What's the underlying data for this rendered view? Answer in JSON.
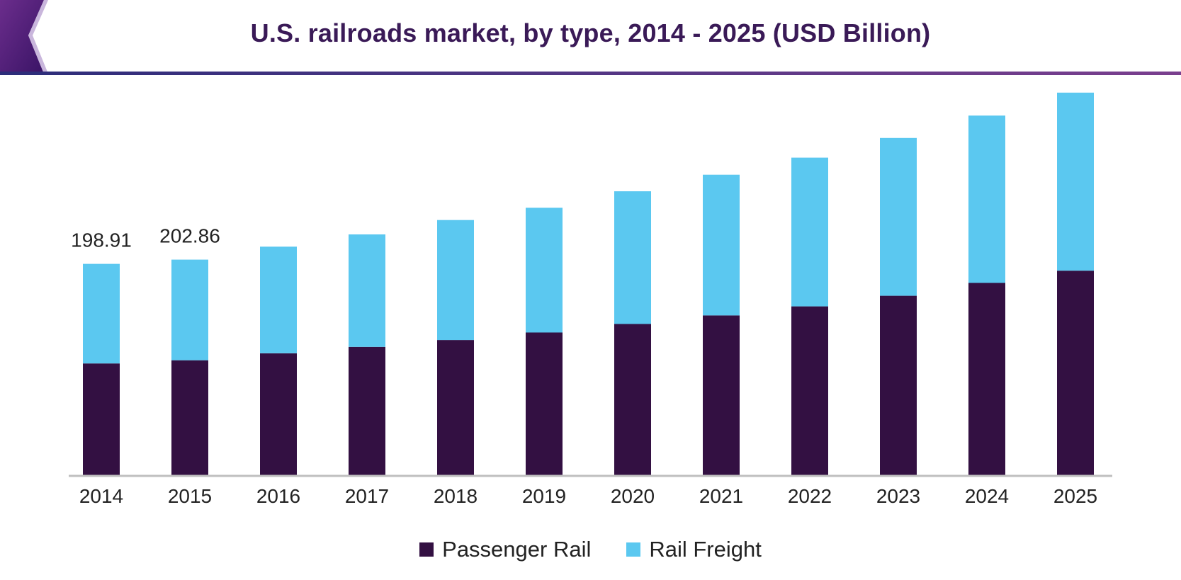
{
  "colors": {
    "passenger": "#331042",
    "freight": "#5bc8f0",
    "title": "#3a1a57",
    "accent": "#4a2470"
  },
  "chart_data": {
    "type": "bar",
    "stacked": true,
    "title": "U.S. railroads market, by type, 2014 - 2025 (USD Billion)",
    "xlabel": "",
    "ylabel": "",
    "ylim": [
      0,
      370
    ],
    "categories": [
      "2014",
      "2015",
      "2016",
      "2017",
      "2018",
      "2019",
      "2020",
      "2021",
      "2022",
      "2023",
      "2024",
      "2025"
    ],
    "series": [
      {
        "name": "Passenger Rail",
        "values": [
          105.5,
          108.5,
          115.0,
          121.0,
          127.5,
          134.5,
          142.5,
          150.5,
          159.0,
          169.0,
          181.0,
          192.5
        ]
      },
      {
        "name": "Rail Freight",
        "values": [
          93.41,
          94.36,
          100.0,
          105.5,
          112.5,
          117.0,
          124.5,
          132.0,
          139.5,
          148.0,
          157.0,
          167.0
        ]
      }
    ],
    "data_labels": [
      {
        "category": "2014",
        "text": "198.91"
      },
      {
        "category": "2015",
        "text": "202.86"
      }
    ],
    "legend_position": "bottom",
    "grid": false
  }
}
